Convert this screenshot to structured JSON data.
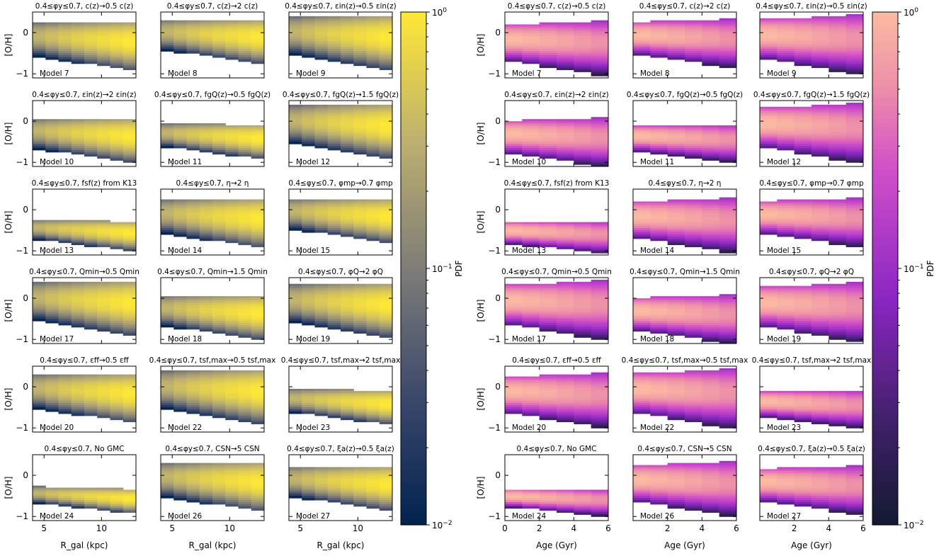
{
  "figure": {
    "left_block": {
      "x_label": "R_gal (kpc)",
      "y_label": "[O/H]",
      "colorbar": {
        "label": "PDF",
        "ticks": [
          "10^0",
          "10^-1",
          "10^-2"
        ],
        "colormap": "cividis",
        "scale": "log",
        "range": [
          0.01,
          1
        ]
      }
    },
    "right_block": {
      "x_label": "Age (Gyr)",
      "y_label": "[O/H]",
      "colorbar": {
        "label": "PDF",
        "ticks": [
          "10^0",
          "10^-1",
          "10^-2"
        ],
        "colormap": "magma-pink",
        "scale": "log",
        "range": [
          0.01,
          1
        ]
      }
    }
  },
  "chart_data": {
    "type": "heatmap",
    "grid": "6 rows x 3 columns per block",
    "rgal_axis": {
      "range": [
        4,
        13
      ],
      "ticks": [
        5,
        10
      ]
    },
    "age_axis": {
      "range": [
        0,
        6
      ],
      "ticks_bottom_first": [
        0,
        2,
        4,
        6
      ],
      "ticks_bottom_other": [
        2,
        4,
        6
      ]
    },
    "oh_axis": {
      "range": [
        -1.1,
        0.5
      ],
      "ticks": [
        0,
        -1
      ]
    },
    "panels": [
      {
        "title": "0.4≤φy≤0.7, c(z)→0.5 c(z)",
        "label": "Model 7",
        "center": -0.15,
        "width": 0.5
      },
      {
        "title": "0.4≤φy≤0.7, c(z)→2 c(z)",
        "label": "Model 8",
        "center": -0.05,
        "width": 0.45
      },
      {
        "title": "0.4≤φy≤0.7, εin(z)→0.5 εin(z)",
        "label": "Model 9",
        "center": -0.05,
        "width": 0.55
      },
      {
        "title": "0.4≤φy≤0.7, εin(z)→2 εin(z)",
        "label": "Model 10",
        "center": -0.3,
        "width": 0.45
      },
      {
        "title": "0.4≤φy≤0.7, fgQ(z)→0.5 fgQ(z)",
        "label": "Model 11",
        "center": -0.35,
        "width": 0.35
      },
      {
        "title": "0.4≤φy≤0.7, fgQ(z)→1.5 fgQ(z)",
        "label": "Model 12",
        "center": -0.05,
        "width": 0.55
      },
      {
        "title": "0.4≤φy≤0.7, fsf(z) from K13",
        "label": "Model 13",
        "center": -0.5,
        "width": 0.3
      },
      {
        "title": "0.4≤φy≤0.7, η→2 η",
        "label": "Model 14",
        "center": -0.15,
        "width": 0.5
      },
      {
        "title": "0.4≤φy≤0.7, φmp→0.7 φmp",
        "label": "Model 15",
        "center": -0.1,
        "width": 0.45
      },
      {
        "title": "0.4≤φy≤0.7, Qmin→0.5 Qmin",
        "label": "Model 17",
        "center": -0.05,
        "width": 0.55
      },
      {
        "title": "0.4≤φy≤0.7, Qmin→1.5 Qmin",
        "label": "Model 18",
        "center": -0.3,
        "width": 0.45
      },
      {
        "title": "0.4≤φy≤0.7, φQ→2 φQ",
        "label": "Model 19",
        "center": -0.1,
        "width": 0.55
      },
      {
        "title": "0.4≤φy≤0.7, εff→0.5 εff",
        "label": "Model 20",
        "center": -0.1,
        "width": 0.5
      },
      {
        "title": "0.4≤φy≤0.7, tsf,max→0.5 tsf,max",
        "label": "Model 22",
        "center": -0.05,
        "width": 0.55
      },
      {
        "title": "0.4≤φy≤0.7, tsf,max→2 tsf,max",
        "label": "Model 23",
        "center": -0.35,
        "width": 0.35
      },
      {
        "title": "0.4≤φy≤0.7, No GMC",
        "label": "Model 24",
        "center": -0.5,
        "width": 0.25
      },
      {
        "title": "0.4≤φy≤0.7, CSN→5 CSN",
        "label": "Model 26",
        "center": -0.1,
        "width": 0.5
      },
      {
        "title": "0.4≤φy≤0.7, ξa(z)→0.5 ξa(z)",
        "label": "Model 27",
        "center": -0.15,
        "width": 0.45
      }
    ]
  }
}
